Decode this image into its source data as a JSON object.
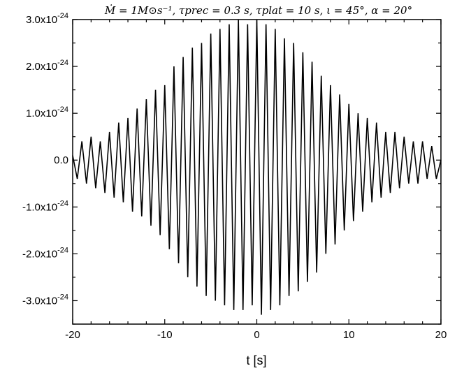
{
  "chart_data": {
    "type": "line",
    "title": "Ṁ = 1M⊙s⁻¹,  τprec = 0.3 s, τplat = 10 s,  ι = 45°,  α = 20°",
    "xlabel": "t [s]",
    "ylabel": "",
    "xlim": [
      -20,
      20
    ],
    "ylim": [
      -3.5e-24,
      3e-24
    ],
    "x_ticks": [
      -20,
      -10,
      0,
      10,
      20
    ],
    "x_tick_labels": [
      "-20",
      "-10",
      "0",
      "10",
      "20"
    ],
    "y_ticks": [
      3e-24,
      2e-24,
      1e-24,
      0.0,
      -1e-24,
      -2e-24,
      -3e-24
    ],
    "y_tick_mantissas": [
      "3.0x10",
      "2.0x10",
      "1.0x10",
      "0.0",
      "-1.0x10",
      "-2.0x10",
      "-3.0x10"
    ],
    "y_tick_exponents": [
      "-24",
      "-24",
      "-24",
      "",
      "-24",
      "-24",
      "-24"
    ],
    "grid": false,
    "series": [
      {
        "color": "#000000",
        "description": "gravitational-wave strain oscillation with diamond-shaped (triangular) envelope",
        "x": [
          -20,
          -19.5,
          -19,
          -18.5,
          -18,
          -17.5,
          -17,
          -16.5,
          -16,
          -15.5,
          -15,
          -14.5,
          -14,
          -13.5,
          -13,
          -12.5,
          -12,
          -11.5,
          -11,
          -10.5,
          -10,
          -9.5,
          -9,
          -8.5,
          -8,
          -7.5,
          -7,
          -6.5,
          -6,
          -5.5,
          -5,
          -4.5,
          -4,
          -3.5,
          -3,
          -2.5,
          -2,
          -1.5,
          -1,
          -0.5,
          0,
          0.5,
          1,
          1.5,
          2,
          2.5,
          3,
          3.5,
          4,
          4.5,
          5,
          5.5,
          6,
          6.5,
          7,
          7.5,
          8,
          8.5,
          9,
          9.5,
          10,
          10.5,
          11,
          11.5,
          12,
          12.5,
          13,
          13.5,
          14,
          14.5,
          15,
          15.5,
          16,
          16.5,
          17,
          17.5,
          18,
          18.5,
          19,
          19.5,
          20
        ],
        "y": [
          1e-25,
          -4e-25,
          4e-25,
          -5e-25,
          5e-25,
          -6e-25,
          4e-25,
          -7e-25,
          6e-25,
          -8e-25,
          8e-25,
          -9e-25,
          9e-25,
          -1.1e-24,
          1.1e-24,
          -1.2e-24,
          1.3e-24,
          -1.4e-24,
          1.5e-24,
          -1.6e-24,
          1.6e-24,
          -1.9e-24,
          2e-24,
          -2.2e-24,
          2.2e-24,
          -2.5e-24,
          2.4e-24,
          -2.7e-24,
          2.5e-24,
          -2.9e-24,
          2.7e-24,
          -3e-24,
          2.8e-24,
          -3.1e-24,
          2.9e-24,
          -3.2e-24,
          3e-24,
          -3.2e-24,
          2.9e-24,
          -3.1e-24,
          3e-24,
          -3.3e-24,
          2.9e-24,
          -3.2e-24,
          2.8e-24,
          -3.1e-24,
          2.6e-24,
          -2.9e-24,
          2.5e-24,
          -2.8e-24,
          2.3e-24,
          -2.6e-24,
          2.1e-24,
          -2.4e-24,
          1.8e-24,
          -2e-24,
          1.6e-24,
          -1.8e-24,
          1.4e-24,
          -1.5e-24,
          1.2e-24,
          -1.3e-24,
          1e-24,
          -1.1e-24,
          9e-25,
          -9e-25,
          8e-25,
          -8e-25,
          6e-25,
          -7e-25,
          6e-25,
          -6e-25,
          5e-25,
          -5e-25,
          4e-25,
          -5e-25,
          4e-25,
          -4e-25,
          3e-25,
          -4e-25,
          0.0
        ]
      }
    ]
  }
}
